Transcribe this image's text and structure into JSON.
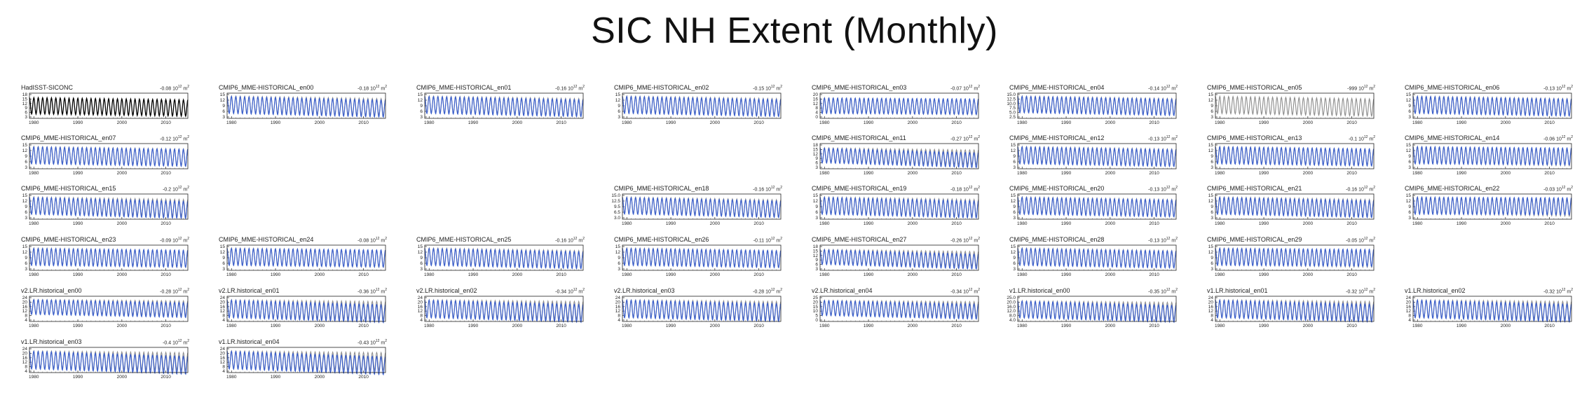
{
  "title": "SIC NH Extent (Monthly)",
  "colors": {
    "observation": "#000000",
    "reference": "#8c8c8c",
    "model": "#3a5fcd"
  },
  "chart_data": {
    "type": "line",
    "title": "SIC NH Extent (Monthly)",
    "x_range": [
      1979,
      2015
    ],
    "x_ticks": [
      1980,
      1990,
      2000,
      2010
    ],
    "x_tick_labels": [
      "1980",
      "1990",
      "2000",
      "2010"
    ],
    "series_legend": "black = observation (HadISST), grey = observation overlay, blue = model member",
    "panels": [
      {
        "name": "HadISST-SICONC",
        "trend": "-0.08",
        "trend_unit": "10",
        "trend_exp": "12",
        "trend_suffix": "m",
        "trend_sup2": "2",
        "ylim": [
          3,
          18
        ],
        "yticks": [
          "18",
          "15",
          "12",
          "9",
          "6",
          "3"
        ],
        "seasonal_min": 5,
        "seasonal_max": 16,
        "style": "obs",
        "grid": [
          0,
          0
        ]
      },
      {
        "name": "CMIP6_MME-HISTORICAL_en00",
        "trend": "-0.18",
        "ylim": [
          3,
          16
        ],
        "yticks": [
          "15",
          "12",
          "9",
          "6",
          "3"
        ],
        "seasonal_min": 5,
        "seasonal_max": 15,
        "style": "model",
        "grid": [
          0,
          1
        ]
      },
      {
        "name": "CMIP6_MME-HISTORICAL_en01",
        "trend": "-0.16",
        "ylim": [
          3,
          16
        ],
        "yticks": [
          "15",
          "12",
          "9",
          "6",
          "3"
        ],
        "seasonal_min": 5,
        "seasonal_max": 15,
        "style": "model",
        "grid": [
          0,
          2
        ]
      },
      {
        "name": "CMIP6_MME-HISTORICAL_en02",
        "trend": "-0.15",
        "ylim": [
          3,
          16
        ],
        "yticks": [
          "15",
          "12",
          "9",
          "6",
          "3"
        ],
        "seasonal_min": 5,
        "seasonal_max": 15,
        "style": "model",
        "grid": [
          0,
          3
        ]
      },
      {
        "name": "CMIP6_MME-HISTORICAL_en03",
        "trend": "-0.07",
        "ylim": [
          0,
          20
        ],
        "yticks": [
          "20",
          "16",
          "12",
          "8",
          "4",
          "0"
        ],
        "seasonal_min": 3,
        "seasonal_max": 17,
        "style": "model",
        "grid": [
          0,
          4
        ]
      },
      {
        "name": "CMIP6_MME-HISTORICAL_en04",
        "trend": "-0.14",
        "ylim": [
          2.5,
          16
        ],
        "yticks": [
          "15.0",
          "12.5",
          "10.0",
          "7.5",
          "5.0",
          "2.5"
        ],
        "seasonal_min": 5,
        "seasonal_max": 15,
        "style": "model",
        "grid": [
          0,
          5
        ]
      },
      {
        "name": "CMIP6_MME-HISTORICAL_en05",
        "trend": "-999",
        "ylim": [
          3,
          16
        ],
        "yticks": [
          "15",
          "12",
          "9",
          "6",
          "3"
        ],
        "seasonal_min": 5,
        "seasonal_max": 15,
        "style": "ref",
        "grid": [
          0,
          6
        ]
      },
      {
        "name": "CMIP6_MME-HISTORICAL_en06",
        "trend": "-0.13",
        "ylim": [
          3,
          16
        ],
        "yticks": [
          "15",
          "12",
          "9",
          "6",
          "3"
        ],
        "seasonal_min": 5,
        "seasonal_max": 15,
        "style": "model",
        "grid": [
          0,
          7
        ]
      },
      {
        "name": "CMIP6_MME-HISTORICAL_en07",
        "trend": "-0.12",
        "ylim": [
          3,
          16
        ],
        "yticks": [
          "15",
          "12",
          "9",
          "6",
          "3"
        ],
        "seasonal_min": 5,
        "seasonal_max": 15,
        "style": "model",
        "grid": [
          1,
          0
        ]
      },
      {
        "name": "CMIP6_MME-HISTORICAL_en11",
        "trend": "-0.27",
        "ylim": [
          3,
          18
        ],
        "yticks": [
          "18",
          "15",
          "12",
          "9",
          "6",
          "3"
        ],
        "seasonal_min": 6,
        "seasonal_max": 16,
        "style": "model",
        "grid": [
          1,
          4
        ]
      },
      {
        "name": "CMIP6_MME-HISTORICAL_en12",
        "trend": "-0.13",
        "ylim": [
          3,
          16
        ],
        "yticks": [
          "15",
          "12",
          "9",
          "6",
          "3"
        ],
        "seasonal_min": 5,
        "seasonal_max": 15,
        "style": "model",
        "grid": [
          1,
          5
        ]
      },
      {
        "name": "CMIP6_MME-HISTORICAL_en13",
        "trend": "-0.1",
        "ylim": [
          3,
          16
        ],
        "yticks": [
          "15",
          "12",
          "9",
          "6",
          "3"
        ],
        "seasonal_min": 5,
        "seasonal_max": 15,
        "style": "model",
        "grid": [
          1,
          6
        ]
      },
      {
        "name": "CMIP6_MME-HISTORICAL_en14",
        "trend": "-0.06",
        "ylim": [
          3,
          16
        ],
        "yticks": [
          "15",
          "12",
          "9",
          "6",
          "3"
        ],
        "seasonal_min": 5,
        "seasonal_max": 15,
        "style": "model",
        "grid": [
          1,
          7
        ]
      },
      {
        "name": "CMIP6_MME-HISTORICAL_en15",
        "trend": "-0.2",
        "ylim": [
          3,
          16
        ],
        "yticks": [
          "15",
          "12",
          "9",
          "6",
          "3"
        ],
        "seasonal_min": 5,
        "seasonal_max": 15,
        "style": "model",
        "grid": [
          2,
          0
        ]
      },
      {
        "name": "CMIP6_MME-HISTORICAL_en18",
        "trend": "-0.16",
        "ylim": [
          3,
          15
        ],
        "yticks": [
          "15.0",
          "12.5",
          "9.5",
          "6.5",
          "3.0"
        ],
        "seasonal_min": 5,
        "seasonal_max": 14,
        "style": "model",
        "grid": [
          2,
          3
        ]
      },
      {
        "name": "CMIP6_MME-HISTORICAL_en19",
        "trend": "-0.18",
        "ylim": [
          3,
          16
        ],
        "yticks": [
          "15",
          "12",
          "9",
          "6",
          "3"
        ],
        "seasonal_min": 5,
        "seasonal_max": 15,
        "style": "model",
        "grid": [
          2,
          4
        ]
      },
      {
        "name": "CMIP6_MME-HISTORICAL_en20",
        "trend": "-0.13",
        "ylim": [
          3,
          16
        ],
        "yticks": [
          "15",
          "12",
          "9",
          "6",
          "3"
        ],
        "seasonal_min": 5,
        "seasonal_max": 15,
        "style": "model",
        "grid": [
          2,
          5
        ]
      },
      {
        "name": "CMIP6_MME-HISTORICAL_en21",
        "trend": "-0.16",
        "ylim": [
          3,
          16
        ],
        "yticks": [
          "15",
          "12",
          "9",
          "6",
          "3"
        ],
        "seasonal_min": 5,
        "seasonal_max": 15,
        "style": "model",
        "grid": [
          2,
          6
        ]
      },
      {
        "name": "CMIP6_MME-HISTORICAL_en22",
        "trend": "-0.03",
        "ylim": [
          3,
          16
        ],
        "yticks": [
          "15",
          "12",
          "9",
          "6",
          "3"
        ],
        "seasonal_min": 5,
        "seasonal_max": 15,
        "style": "model",
        "grid": [
          2,
          7
        ]
      },
      {
        "name": "CMIP6_MME-HISTORICAL_en23",
        "trend": "-0.09",
        "ylim": [
          3,
          16
        ],
        "yticks": [
          "15",
          "12",
          "9",
          "6",
          "3"
        ],
        "seasonal_min": 5,
        "seasonal_max": 15,
        "style": "model",
        "grid": [
          3,
          0
        ]
      },
      {
        "name": "CMIP6_MME-HISTORICAL_en24",
        "trend": "-0.08",
        "ylim": [
          3,
          16
        ],
        "yticks": [
          "15",
          "12",
          "9",
          "6",
          "3"
        ],
        "seasonal_min": 5,
        "seasonal_max": 15,
        "style": "model",
        "grid": [
          3,
          1
        ]
      },
      {
        "name": "CMIP6_MME-HISTORICAL_en25",
        "trend": "-0.16",
        "ylim": [
          3,
          16
        ],
        "yticks": [
          "15",
          "12",
          "9",
          "6",
          "3"
        ],
        "seasonal_min": 5,
        "seasonal_max": 15,
        "style": "model",
        "grid": [
          3,
          2
        ]
      },
      {
        "name": "CMIP6_MME-HISTORICAL_en26",
        "trend": "-0.11",
        "ylim": [
          3,
          16
        ],
        "yticks": [
          "15",
          "12",
          "9",
          "6",
          "3"
        ],
        "seasonal_min": 5,
        "seasonal_max": 15,
        "style": "model",
        "grid": [
          3,
          3
        ]
      },
      {
        "name": "CMIP6_MME-HISTORICAL_en27",
        "trend": "-0.26",
        "ylim": [
          3,
          18
        ],
        "yticks": [
          "18",
          "15",
          "12",
          "9",
          "6",
          "3"
        ],
        "seasonal_min": 6,
        "seasonal_max": 16,
        "style": "model",
        "grid": [
          3,
          4
        ]
      },
      {
        "name": "CMIP6_MME-HISTORICAL_en28",
        "trend": "-0.13",
        "ylim": [
          3,
          16
        ],
        "yticks": [
          "15",
          "12",
          "9",
          "6",
          "3"
        ],
        "seasonal_min": 5,
        "seasonal_max": 15,
        "style": "model",
        "grid": [
          3,
          5
        ]
      },
      {
        "name": "CMIP6_MME-HISTORICAL_en29",
        "trend": "-0.05",
        "ylim": [
          3,
          16
        ],
        "yticks": [
          "15",
          "12",
          "9",
          "6",
          "3"
        ],
        "seasonal_min": 5,
        "seasonal_max": 15,
        "style": "model",
        "grid": [
          3,
          6
        ]
      },
      {
        "name": "v2.LR.historical_en00",
        "trend": "-0.28",
        "ylim": [
          0,
          24
        ],
        "yticks": [
          "24",
          "20",
          "16",
          "12",
          "8",
          "4"
        ],
        "seasonal_min": 6,
        "seasonal_max": 22,
        "style": "model",
        "grid": [
          4,
          0
        ]
      },
      {
        "name": "v2.LR.historical_en01",
        "trend": "-0.36",
        "ylim": [
          4,
          24
        ],
        "yticks": [
          "24",
          "20",
          "16",
          "12",
          "8",
          "4"
        ],
        "seasonal_min": 6,
        "seasonal_max": 22,
        "style": "model",
        "grid": [
          4,
          1
        ]
      },
      {
        "name": "v2.LR.historical_en02",
        "trend": "-0.34",
        "ylim": [
          4,
          24
        ],
        "yticks": [
          "24",
          "20",
          "16",
          "12",
          "8",
          "4"
        ],
        "seasonal_min": 6,
        "seasonal_max": 22,
        "style": "model",
        "grid": [
          4,
          2
        ]
      },
      {
        "name": "v2.LR.historical_en03",
        "trend": "-0.28",
        "ylim": [
          4,
          24
        ],
        "yticks": [
          "24",
          "20",
          "16",
          "12",
          "8",
          "4"
        ],
        "seasonal_min": 6,
        "seasonal_max": 22,
        "style": "model",
        "grid": [
          4,
          3
        ]
      },
      {
        "name": "v2.LR.historical_en04",
        "trend": "-0.34",
        "ylim": [
          0,
          25
        ],
        "yticks": [
          "25",
          "20",
          "15",
          "10",
          "5",
          "0"
        ],
        "seasonal_min": 5,
        "seasonal_max": 22,
        "style": "model",
        "grid": [
          4,
          4
        ]
      },
      {
        "name": "v1.LR.historical_en00",
        "trend": "-0.35",
        "ylim": [
          4,
          25
        ],
        "yticks": [
          "25.0",
          "20.0",
          "16.0",
          "12.0",
          "8.0",
          "4.0"
        ],
        "seasonal_min": 6,
        "seasonal_max": 22,
        "style": "model",
        "grid": [
          4,
          5
        ]
      },
      {
        "name": "v1.LR.historical_en01",
        "trend": "-0.32",
        "ylim": [
          4,
          24
        ],
        "yticks": [
          "24",
          "20",
          "16",
          "12",
          "8",
          "4"
        ],
        "seasonal_min": 6,
        "seasonal_max": 22,
        "style": "model",
        "grid": [
          4,
          6
        ]
      },
      {
        "name": "v1.LR.historical_en02",
        "trend": "-0.32",
        "ylim": [
          4,
          24
        ],
        "yticks": [
          "24",
          "20",
          "16",
          "12",
          "8",
          "4"
        ],
        "seasonal_min": 6,
        "seasonal_max": 22,
        "style": "model",
        "grid": [
          4,
          7
        ]
      },
      {
        "name": "v1.LR.historical_en03",
        "trend": "-0.4",
        "ylim": [
          4,
          24
        ],
        "yticks": [
          "24",
          "20",
          "16",
          "12",
          "8",
          "4"
        ],
        "seasonal_min": 6,
        "seasonal_max": 22,
        "style": "model",
        "grid": [
          5,
          0
        ]
      },
      {
        "name": "v1.LR.historical_en04",
        "trend": "-0.43",
        "ylim": [
          4,
          24
        ],
        "yticks": [
          "24",
          "20",
          "16",
          "12",
          "8",
          "4"
        ],
        "seasonal_min": 6,
        "seasonal_max": 22,
        "style": "model",
        "grid": [
          5,
          1
        ]
      }
    ]
  }
}
